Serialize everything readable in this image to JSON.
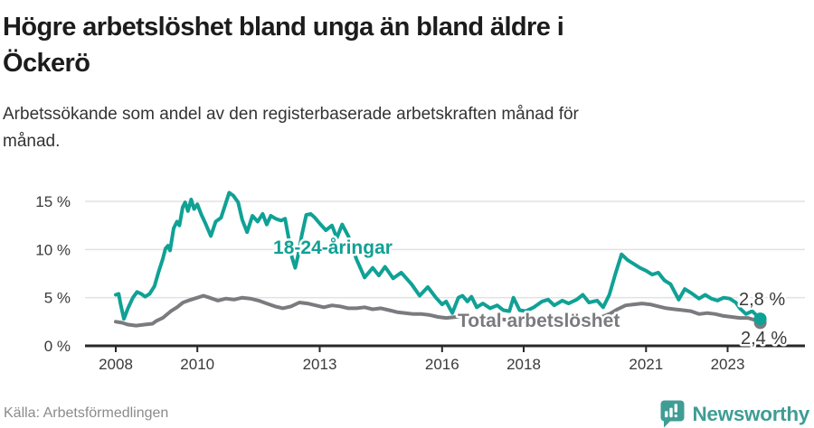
{
  "header": {
    "title_line1": "Högre arbetslöshet bland unga än bland äldre i",
    "title_line2": "Öckerö",
    "subtitle_line1": "Arbetssökande som andel av den registerbaserade arbetskraften månad för",
    "subtitle_line2": "månad."
  },
  "footer": {
    "source": "Källa: Arbetsförmedlingen",
    "brand": "Newsworthy"
  },
  "colors": {
    "youth_line": "#10A195",
    "total_line": "#7A7B7E",
    "axis": "#28282A",
    "grid": "#E2E2E2",
    "tick_text": "#3A3A3A",
    "brand_teal": "#3F9D95"
  },
  "chart_data": {
    "type": "line",
    "title": "Högre arbetslöshet bland unga än bland äldre i Öckerö",
    "subtitle": "Arbetssökande som andel av den registerbaserade arbetskraften månad för månad.",
    "source": "Källa: Arbetsförmedlingen",
    "x_unit": "year (monthly observations)",
    "y_unit": "%",
    "xlim": [
      2007.9,
      2024.2
    ],
    "ylim": [
      0,
      16.5
    ],
    "grid": true,
    "y_ticks": [
      {
        "value": 0,
        "label": "0 %"
      },
      {
        "value": 5,
        "label": "5 %"
      },
      {
        "value": 10,
        "label": "10 %"
      },
      {
        "value": 15,
        "label": "15 %"
      }
    ],
    "x_ticks": [
      {
        "value": 2008,
        "label": "2008"
      },
      {
        "value": 2010,
        "label": "2010"
      },
      {
        "value": 2013,
        "label": "2013"
      },
      {
        "value": 2016,
        "label": "2016"
      },
      {
        "value": 2018,
        "label": "2018"
      },
      {
        "value": 2021,
        "label": "2021"
      },
      {
        "value": 2023,
        "label": "2023"
      }
    ],
    "series": [
      {
        "name": "18-24-åringar",
        "color": "#10A195",
        "end_label": "2,8 %",
        "end_value": 2.8,
        "points": [
          [
            2008.0,
            5.3
          ],
          [
            2008.07,
            5.4
          ],
          [
            2008.12,
            4.3
          ],
          [
            2008.2,
            2.8
          ],
          [
            2008.3,
            3.9
          ],
          [
            2008.42,
            5.0
          ],
          [
            2008.52,
            5.6
          ],
          [
            2008.62,
            5.4
          ],
          [
            2008.72,
            5.1
          ],
          [
            2008.83,
            5.4
          ],
          [
            2008.95,
            6.2
          ],
          [
            2009.05,
            7.7
          ],
          [
            2009.15,
            9.0
          ],
          [
            2009.22,
            10.1
          ],
          [
            2009.28,
            10.4
          ],
          [
            2009.33,
            9.9
          ],
          [
            2009.42,
            12.2
          ],
          [
            2009.5,
            12.9
          ],
          [
            2009.56,
            12.5
          ],
          [
            2009.64,
            14.4
          ],
          [
            2009.7,
            14.9
          ],
          [
            2009.77,
            14.0
          ],
          [
            2009.85,
            15.2
          ],
          [
            2009.92,
            14.2
          ],
          [
            2010.0,
            14.7
          ],
          [
            2010.1,
            13.6
          ],
          [
            2010.2,
            12.7
          ],
          [
            2010.33,
            11.4
          ],
          [
            2010.45,
            12.9
          ],
          [
            2010.58,
            13.3
          ],
          [
            2010.68,
            14.6
          ],
          [
            2010.78,
            15.9
          ],
          [
            2010.88,
            15.6
          ],
          [
            2011.0,
            14.9
          ],
          [
            2011.1,
            13.1
          ],
          [
            2011.22,
            11.8
          ],
          [
            2011.35,
            13.5
          ],
          [
            2011.48,
            12.9
          ],
          [
            2011.6,
            13.7
          ],
          [
            2011.7,
            12.6
          ],
          [
            2011.8,
            13.5
          ],
          [
            2011.92,
            13.2
          ],
          [
            2012.05,
            13.0
          ],
          [
            2012.15,
            13.2
          ],
          [
            2012.25,
            10.9
          ],
          [
            2012.32,
            9.2
          ],
          [
            2012.4,
            8.1
          ],
          [
            2012.47,
            9.4
          ],
          [
            2012.56,
            11.5
          ],
          [
            2012.67,
            13.6
          ],
          [
            2012.78,
            13.7
          ],
          [
            2012.88,
            13.3
          ],
          [
            2013.0,
            12.7
          ],
          [
            2013.15,
            12.0
          ],
          [
            2013.3,
            12.5
          ],
          [
            2013.42,
            11.2
          ],
          [
            2013.55,
            12.6
          ],
          [
            2013.7,
            11.4
          ],
          [
            2013.9,
            9.0
          ],
          [
            2014.1,
            7.1
          ],
          [
            2014.3,
            8.1
          ],
          [
            2014.45,
            7.3
          ],
          [
            2014.6,
            8.2
          ],
          [
            2014.8,
            7.0
          ],
          [
            2015.0,
            7.6
          ],
          [
            2015.25,
            6.4
          ],
          [
            2015.45,
            5.2
          ],
          [
            2015.65,
            6.1
          ],
          [
            2015.85,
            5.0
          ],
          [
            2016.0,
            4.3
          ],
          [
            2016.1,
            4.6
          ],
          [
            2016.25,
            3.4
          ],
          [
            2016.4,
            5.0
          ],
          [
            2016.5,
            5.2
          ],
          [
            2016.62,
            4.6
          ],
          [
            2016.72,
            5.1
          ],
          [
            2016.85,
            4.0
          ],
          [
            2017.0,
            4.4
          ],
          [
            2017.18,
            3.9
          ],
          [
            2017.35,
            4.2
          ],
          [
            2017.5,
            3.7
          ],
          [
            2017.65,
            3.6
          ],
          [
            2017.75,
            5.0
          ],
          [
            2017.9,
            3.7
          ],
          [
            2018.05,
            3.6
          ],
          [
            2018.25,
            4.0
          ],
          [
            2018.45,
            4.6
          ],
          [
            2018.6,
            4.8
          ],
          [
            2018.75,
            4.2
          ],
          [
            2018.95,
            4.7
          ],
          [
            2019.1,
            4.4
          ],
          [
            2019.3,
            4.8
          ],
          [
            2019.45,
            5.3
          ],
          [
            2019.6,
            4.5
          ],
          [
            2019.8,
            4.7
          ],
          [
            2019.95,
            4.0
          ],
          [
            2020.1,
            5.3
          ],
          [
            2020.25,
            7.5
          ],
          [
            2020.4,
            9.5
          ],
          [
            2020.55,
            8.9
          ],
          [
            2020.7,
            8.5
          ],
          [
            2020.85,
            8.1
          ],
          [
            2021.0,
            7.8
          ],
          [
            2021.15,
            7.4
          ],
          [
            2021.3,
            7.6
          ],
          [
            2021.45,
            6.8
          ],
          [
            2021.6,
            6.4
          ],
          [
            2021.8,
            4.8
          ],
          [
            2021.95,
            5.9
          ],
          [
            2022.1,
            5.5
          ],
          [
            2022.3,
            4.9
          ],
          [
            2022.45,
            5.3
          ],
          [
            2022.6,
            4.9
          ],
          [
            2022.75,
            4.7
          ],
          [
            2022.9,
            5.0
          ],
          [
            2023.05,
            4.9
          ],
          [
            2023.2,
            4.5
          ],
          [
            2023.3,
            3.9
          ],
          [
            2023.45,
            3.3
          ],
          [
            2023.6,
            3.6
          ],
          [
            2023.8,
            2.8
          ]
        ]
      },
      {
        "name": "Total arbetslöshet",
        "color": "#7A7B7E",
        "end_label": "2,4 %",
        "end_value": 2.4,
        "points": [
          [
            2008.0,
            2.5
          ],
          [
            2008.15,
            2.4
          ],
          [
            2008.3,
            2.2
          ],
          [
            2008.5,
            2.1
          ],
          [
            2008.7,
            2.2
          ],
          [
            2008.9,
            2.3
          ],
          [
            2009.0,
            2.6
          ],
          [
            2009.15,
            2.9
          ],
          [
            2009.35,
            3.6
          ],
          [
            2009.5,
            4.0
          ],
          [
            2009.65,
            4.5
          ],
          [
            2009.85,
            4.8
          ],
          [
            2010.0,
            5.0
          ],
          [
            2010.15,
            5.2
          ],
          [
            2010.3,
            5.0
          ],
          [
            2010.5,
            4.7
          ],
          [
            2010.7,
            4.9
          ],
          [
            2010.9,
            4.8
          ],
          [
            2011.1,
            5.0
          ],
          [
            2011.3,
            4.9
          ],
          [
            2011.5,
            4.7
          ],
          [
            2011.7,
            4.4
          ],
          [
            2011.9,
            4.1
          ],
          [
            2012.1,
            3.9
          ],
          [
            2012.3,
            4.1
          ],
          [
            2012.5,
            4.5
          ],
          [
            2012.7,
            4.4
          ],
          [
            2012.9,
            4.2
          ],
          [
            2013.1,
            4.0
          ],
          [
            2013.3,
            4.2
          ],
          [
            2013.5,
            4.1
          ],
          [
            2013.7,
            3.9
          ],
          [
            2013.9,
            3.9
          ],
          [
            2014.1,
            4.0
          ],
          [
            2014.3,
            3.8
          ],
          [
            2014.5,
            3.9
          ],
          [
            2014.7,
            3.7
          ],
          [
            2014.9,
            3.5
          ],
          [
            2015.1,
            3.4
          ],
          [
            2015.3,
            3.3
          ],
          [
            2015.5,
            3.3
          ],
          [
            2015.7,
            3.2
          ],
          [
            2015.9,
            3.0
          ],
          [
            2016.1,
            2.9
          ],
          [
            2016.35,
            3.0
          ],
          [
            2016.6,
            3.1
          ],
          [
            2016.85,
            2.9
          ],
          [
            2017.1,
            2.8
          ],
          [
            2017.35,
            2.8
          ],
          [
            2017.6,
            2.7
          ],
          [
            2017.85,
            2.6
          ],
          [
            2018.1,
            2.5
          ],
          [
            2018.35,
            2.5
          ],
          [
            2018.6,
            2.6
          ],
          [
            2018.85,
            2.7
          ],
          [
            2019.1,
            2.8
          ],
          [
            2019.35,
            2.8
          ],
          [
            2019.6,
            2.8
          ],
          [
            2019.85,
            2.9
          ],
          [
            2020.1,
            3.3
          ],
          [
            2020.3,
            3.8
          ],
          [
            2020.5,
            4.2
          ],
          [
            2020.7,
            4.3
          ],
          [
            2020.9,
            4.4
          ],
          [
            2021.1,
            4.3
          ],
          [
            2021.3,
            4.1
          ],
          [
            2021.5,
            3.9
          ],
          [
            2021.7,
            3.8
          ],
          [
            2021.9,
            3.7
          ],
          [
            2022.1,
            3.6
          ],
          [
            2022.3,
            3.3
          ],
          [
            2022.5,
            3.4
          ],
          [
            2022.7,
            3.3
          ],
          [
            2022.9,
            3.1
          ],
          [
            2023.1,
            3.0
          ],
          [
            2023.3,
            2.9
          ],
          [
            2023.5,
            2.9
          ],
          [
            2023.65,
            2.7
          ],
          [
            2023.8,
            2.4
          ]
        ]
      }
    ]
  }
}
